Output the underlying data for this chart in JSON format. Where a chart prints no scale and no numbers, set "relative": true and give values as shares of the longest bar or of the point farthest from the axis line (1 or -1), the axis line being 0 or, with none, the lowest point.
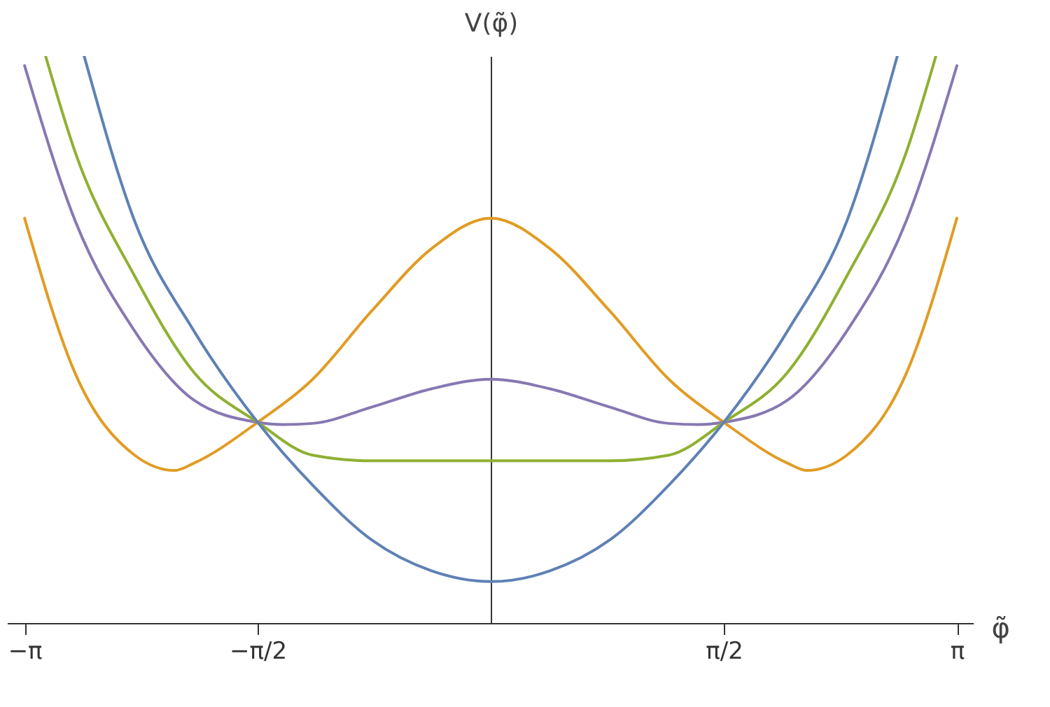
{
  "chart_data": {
    "type": "line",
    "relative": true,
    "xlabel": "φ̃",
    "ylabel": "V(φ̃)",
    "xlim": [
      -3.26,
      3.25
    ],
    "xticks": [
      {
        "value": -3.1416,
        "label": "−π"
      },
      {
        "value": -1.5708,
        "label": "−π/2"
      },
      {
        "value": 1.5708,
        "label": "π/2"
      },
      {
        "value": 3.1416,
        "label": "π"
      }
    ],
    "grid": false,
    "legend": false,
    "marker": "none",
    "line_style": "solid",
    "series": [
      {
        "color": "#e19c24",
        "x": [
          -3.1416,
          -2.8,
          -2.4,
          -2.13,
          -2.0,
          -1.5708,
          -1.2,
          -0.8,
          -0.4,
          0,
          0.4,
          0.8,
          1.2,
          1.5708,
          2.0,
          2.13,
          2.4,
          2.8,
          3.1416
        ],
        "values": [
          0.714,
          0.44,
          0.296,
          0.269,
          0.282,
          0.354,
          0.43,
          0.551,
          0.66,
          0.714,
          0.66,
          0.551,
          0.43,
          0.354,
          0.282,
          0.269,
          0.296,
          0.44,
          0.714
        ]
      },
      {
        "color": "#8778b3",
        "x": [
          -3.1416,
          -2.8,
          -2.4,
          -2.0,
          -1.5708,
          -1.4,
          -1.2,
          -0.8,
          -0.4,
          0,
          0.4,
          0.8,
          1.2,
          1.4,
          1.5708,
          2.0,
          2.4,
          2.8,
          3.1416
        ],
        "values": [
          0.983,
          0.709,
          0.515,
          0.393,
          0.354,
          0.35,
          0.352,
          0.381,
          0.413,
          0.43,
          0.413,
          0.381,
          0.352,
          0.35,
          0.354,
          0.393,
          0.515,
          0.709,
          0.983
        ]
      },
      {
        "color": "#8fb032",
        "x": [
          -3.0,
          -2.8,
          -2.4,
          -2.0,
          -1.5708,
          -1.2,
          -0.8,
          -0.4,
          0,
          0.4,
          0.8,
          1.2,
          1.5708,
          2.0,
          2.4,
          2.8,
          3.0
        ],
        "values": [
          1.0,
          0.83,
          0.612,
          0.442,
          0.354,
          0.296,
          0.286,
          0.286,
          0.286,
          0.286,
          0.286,
          0.296,
          0.354,
          0.442,
          0.612,
          0.83,
          1.0
        ]
      },
      {
        "color": "#5e81b5",
        "x": [
          -2.74,
          -2.4,
          -2.0,
          -1.5708,
          -1.2,
          -0.8,
          -0.4,
          0,
          0.4,
          0.8,
          1.2,
          1.5708,
          2.0,
          2.4,
          2.74
        ],
        "values": [
          1.0,
          0.709,
          0.515,
          0.354,
          0.243,
          0.146,
          0.092,
          0.073,
          0.092,
          0.146,
          0.243,
          0.354,
          0.515,
          0.709,
          1.0
        ]
      }
    ]
  }
}
